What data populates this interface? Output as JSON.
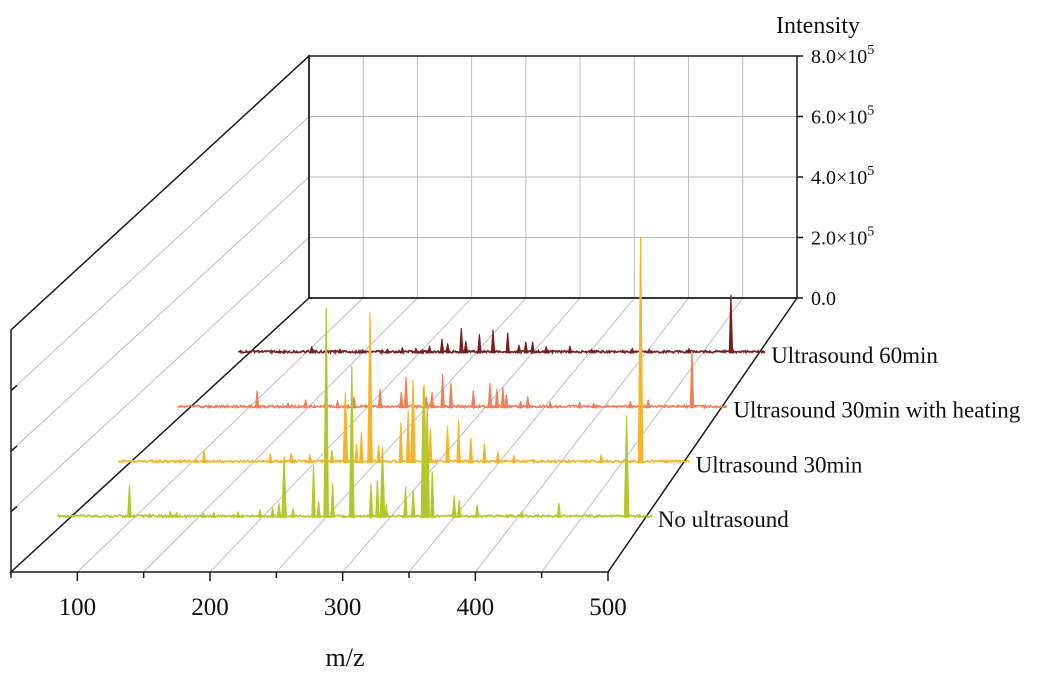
{
  "chart_data": {
    "type": "line",
    "subtype": "3d-waterfall-spectra",
    "xlabel": "m/z",
    "zlabel": "Intensity",
    "xlim": [
      50,
      500
    ],
    "zlim": [
      0,
      800000
    ],
    "x_ticks": [
      "100",
      "200",
      "300",
      "400",
      "500"
    ],
    "z_ticks": [
      "0.0",
      "2.0×10⁵",
      "4.0×10⁵",
      "6.0×10⁵",
      "8.0×10⁵"
    ],
    "grid": true,
    "series": [
      {
        "name": "No ultrasound",
        "color": "#b3c62e",
        "peaks": [
          {
            "x": 96,
            "y": 105000
          },
          {
            "x": 112,
            "y": 12000
          },
          {
            "x": 128,
            "y": 18000
          },
          {
            "x": 133,
            "y": 15000
          },
          {
            "x": 154,
            "y": 12000
          },
          {
            "x": 162,
            "y": 15000
          },
          {
            "x": 181,
            "y": 17000
          },
          {
            "x": 198,
            "y": 25000
          },
          {
            "x": 208,
            "y": 30000
          },
          {
            "x": 213,
            "y": 45000
          },
          {
            "x": 217,
            "y": 200000
          },
          {
            "x": 224,
            "y": 28000
          },
          {
            "x": 240,
            "y": 170000
          },
          {
            "x": 244,
            "y": 50000
          },
          {
            "x": 250,
            "y": 690000
          },
          {
            "x": 255,
            "y": 110000
          },
          {
            "x": 270,
            "y": 500000
          },
          {
            "x": 285,
            "y": 110000
          },
          {
            "x": 290,
            "y": 120000
          },
          {
            "x": 294,
            "y": 230000
          },
          {
            "x": 297,
            "y": 40000
          },
          {
            "x": 312,
            "y": 100000
          },
          {
            "x": 318,
            "y": 90000
          },
          {
            "x": 326,
            "y": 430000
          },
          {
            "x": 329,
            "y": 370000
          },
          {
            "x": 333,
            "y": 150000
          },
          {
            "x": 350,
            "y": 70000
          },
          {
            "x": 354,
            "y": 55000
          },
          {
            "x": 368,
            "y": 40000
          },
          {
            "x": 403,
            "y": 20000
          },
          {
            "x": 432,
            "y": 45000
          },
          {
            "x": 485,
            "y": 335000
          },
          {
            "x": 495,
            "y": 10000
          }
        ]
      },
      {
        "name": "Ultrasound 30min",
        "color": "#f5b528",
        "peaks": [
          {
            "x": 110,
            "y": 40000
          },
          {
            "x": 164,
            "y": 28000
          },
          {
            "x": 181,
            "y": 30000
          },
          {
            "x": 196,
            "y": 25000
          },
          {
            "x": 214,
            "y": 40000
          },
          {
            "x": 225,
            "y": 230000
          },
          {
            "x": 234,
            "y": 60000
          },
          {
            "x": 238,
            "y": 100000
          },
          {
            "x": 245,
            "y": 495000
          },
          {
            "x": 252,
            "y": 55000
          },
          {
            "x": 270,
            "y": 130000
          },
          {
            "x": 276,
            "y": 170000
          },
          {
            "x": 280,
            "y": 270000
          },
          {
            "x": 289,
            "y": 255000
          },
          {
            "x": 294,
            "y": 110000
          },
          {
            "x": 308,
            "y": 120000
          },
          {
            "x": 317,
            "y": 140000
          },
          {
            "x": 327,
            "y": 80000
          },
          {
            "x": 338,
            "y": 60000
          },
          {
            "x": 349,
            "y": 35000
          },
          {
            "x": 362,
            "y": 22000
          },
          {
            "x": 433,
            "y": 25000
          },
          {
            "x": 465,
            "y": 745000
          },
          {
            "x": 486,
            "y": 8000
          }
        ]
      },
      {
        "name": "Ultrasound 30min with heating",
        "color": "#ee7f57",
        "peaks": [
          {
            "x": 107,
            "y": 55000
          },
          {
            "x": 133,
            "y": 15000
          },
          {
            "x": 148,
            "y": 25000
          },
          {
            "x": 165,
            "y": 30000
          },
          {
            "x": 175,
            "y": 22000
          },
          {
            "x": 189,
            "y": 35000
          },
          {
            "x": 211,
            "y": 60000
          },
          {
            "x": 229,
            "y": 50000
          },
          {
            "x": 233,
            "y": 100000
          },
          {
            "x": 250,
            "y": 35000
          },
          {
            "x": 255,
            "y": 50000
          },
          {
            "x": 264,
            "y": 110000
          },
          {
            "x": 271,
            "y": 80000
          },
          {
            "x": 290,
            "y": 55000
          },
          {
            "x": 304,
            "y": 80000
          },
          {
            "x": 310,
            "y": 60000
          },
          {
            "x": 315,
            "y": 65000
          },
          {
            "x": 318,
            "y": 40000
          },
          {
            "x": 330,
            "y": 20000
          },
          {
            "x": 336,
            "y": 35000
          },
          {
            "x": 355,
            "y": 17000
          },
          {
            "x": 380,
            "y": 18000
          },
          {
            "x": 392,
            "y": 14000
          },
          {
            "x": 423,
            "y": 20000
          },
          {
            "x": 438,
            "y": 25000
          },
          {
            "x": 475,
            "y": 185000
          }
        ]
      },
      {
        "name": "Ultrasound 60min",
        "color": "#7b1d1d",
        "peaks": [
          {
            "x": 105,
            "y": 20000
          },
          {
            "x": 130,
            "y": 12000
          },
          {
            "x": 150,
            "y": 10000
          },
          {
            "x": 172,
            "y": 12000
          },
          {
            "x": 185,
            "y": 17000
          },
          {
            "x": 197,
            "y": 15000
          },
          {
            "x": 209,
            "y": 22000
          },
          {
            "x": 220,
            "y": 45000
          },
          {
            "x": 225,
            "y": 30000
          },
          {
            "x": 237,
            "y": 80000
          },
          {
            "x": 241,
            "y": 38000
          },
          {
            "x": 253,
            "y": 60000
          },
          {
            "x": 265,
            "y": 75000
          },
          {
            "x": 278,
            "y": 65000
          },
          {
            "x": 288,
            "y": 25000
          },
          {
            "x": 294,
            "y": 35000
          },
          {
            "x": 300,
            "y": 35000
          },
          {
            "x": 312,
            "y": 20000
          },
          {
            "x": 333,
            "y": 22000
          },
          {
            "x": 352,
            "y": 12000
          },
          {
            "x": 388,
            "y": 15000
          },
          {
            "x": 403,
            "y": 12000
          },
          {
            "x": 438,
            "y": 14000
          },
          {
            "x": 475,
            "y": 190000
          }
        ]
      }
    ]
  }
}
